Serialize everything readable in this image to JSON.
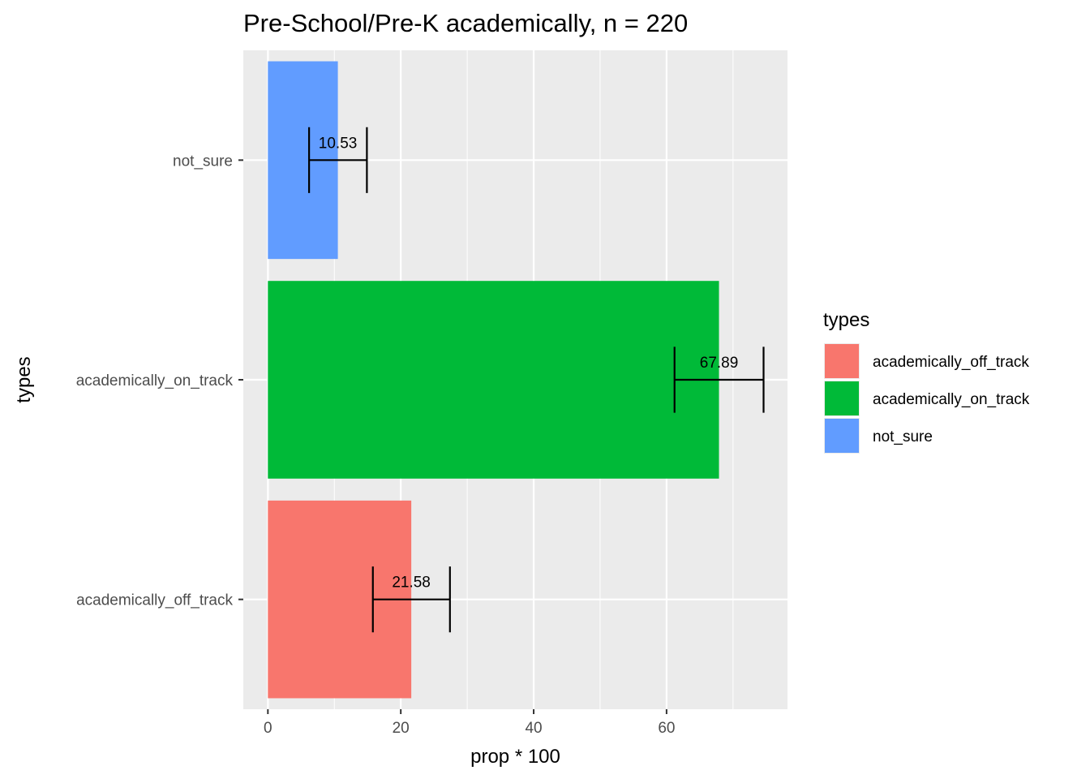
{
  "chart_data": {
    "type": "bar",
    "orientation": "horizontal",
    "title": "Pre-School/Pre-K academically, n = 220",
    "xlabel": "prop * 100",
    "ylabel": "types",
    "xlim": [
      -3.7,
      78.2
    ],
    "x_ticks": [
      0,
      20,
      40,
      60
    ],
    "categories": [
      "academically_off_track",
      "academically_on_track",
      "not_sure"
    ],
    "values": [
      21.58,
      67.89,
      10.53
    ],
    "value_labels": [
      "21.58",
      "67.89",
      "10.53"
    ],
    "error_bars": [
      {
        "low": 15.8,
        "high": 27.4
      },
      {
        "low": 61.2,
        "high": 74.6
      },
      {
        "low": 6.2,
        "high": 14.9
      }
    ],
    "colors": [
      "#F8766D",
      "#00BA38",
      "#619CFF"
    ],
    "panel_background": "#EBEBEB",
    "grid": true,
    "legend": {
      "title": "types",
      "position": "right",
      "entries": [
        "academically_off_track",
        "academically_on_track",
        "not_sure"
      ]
    }
  }
}
